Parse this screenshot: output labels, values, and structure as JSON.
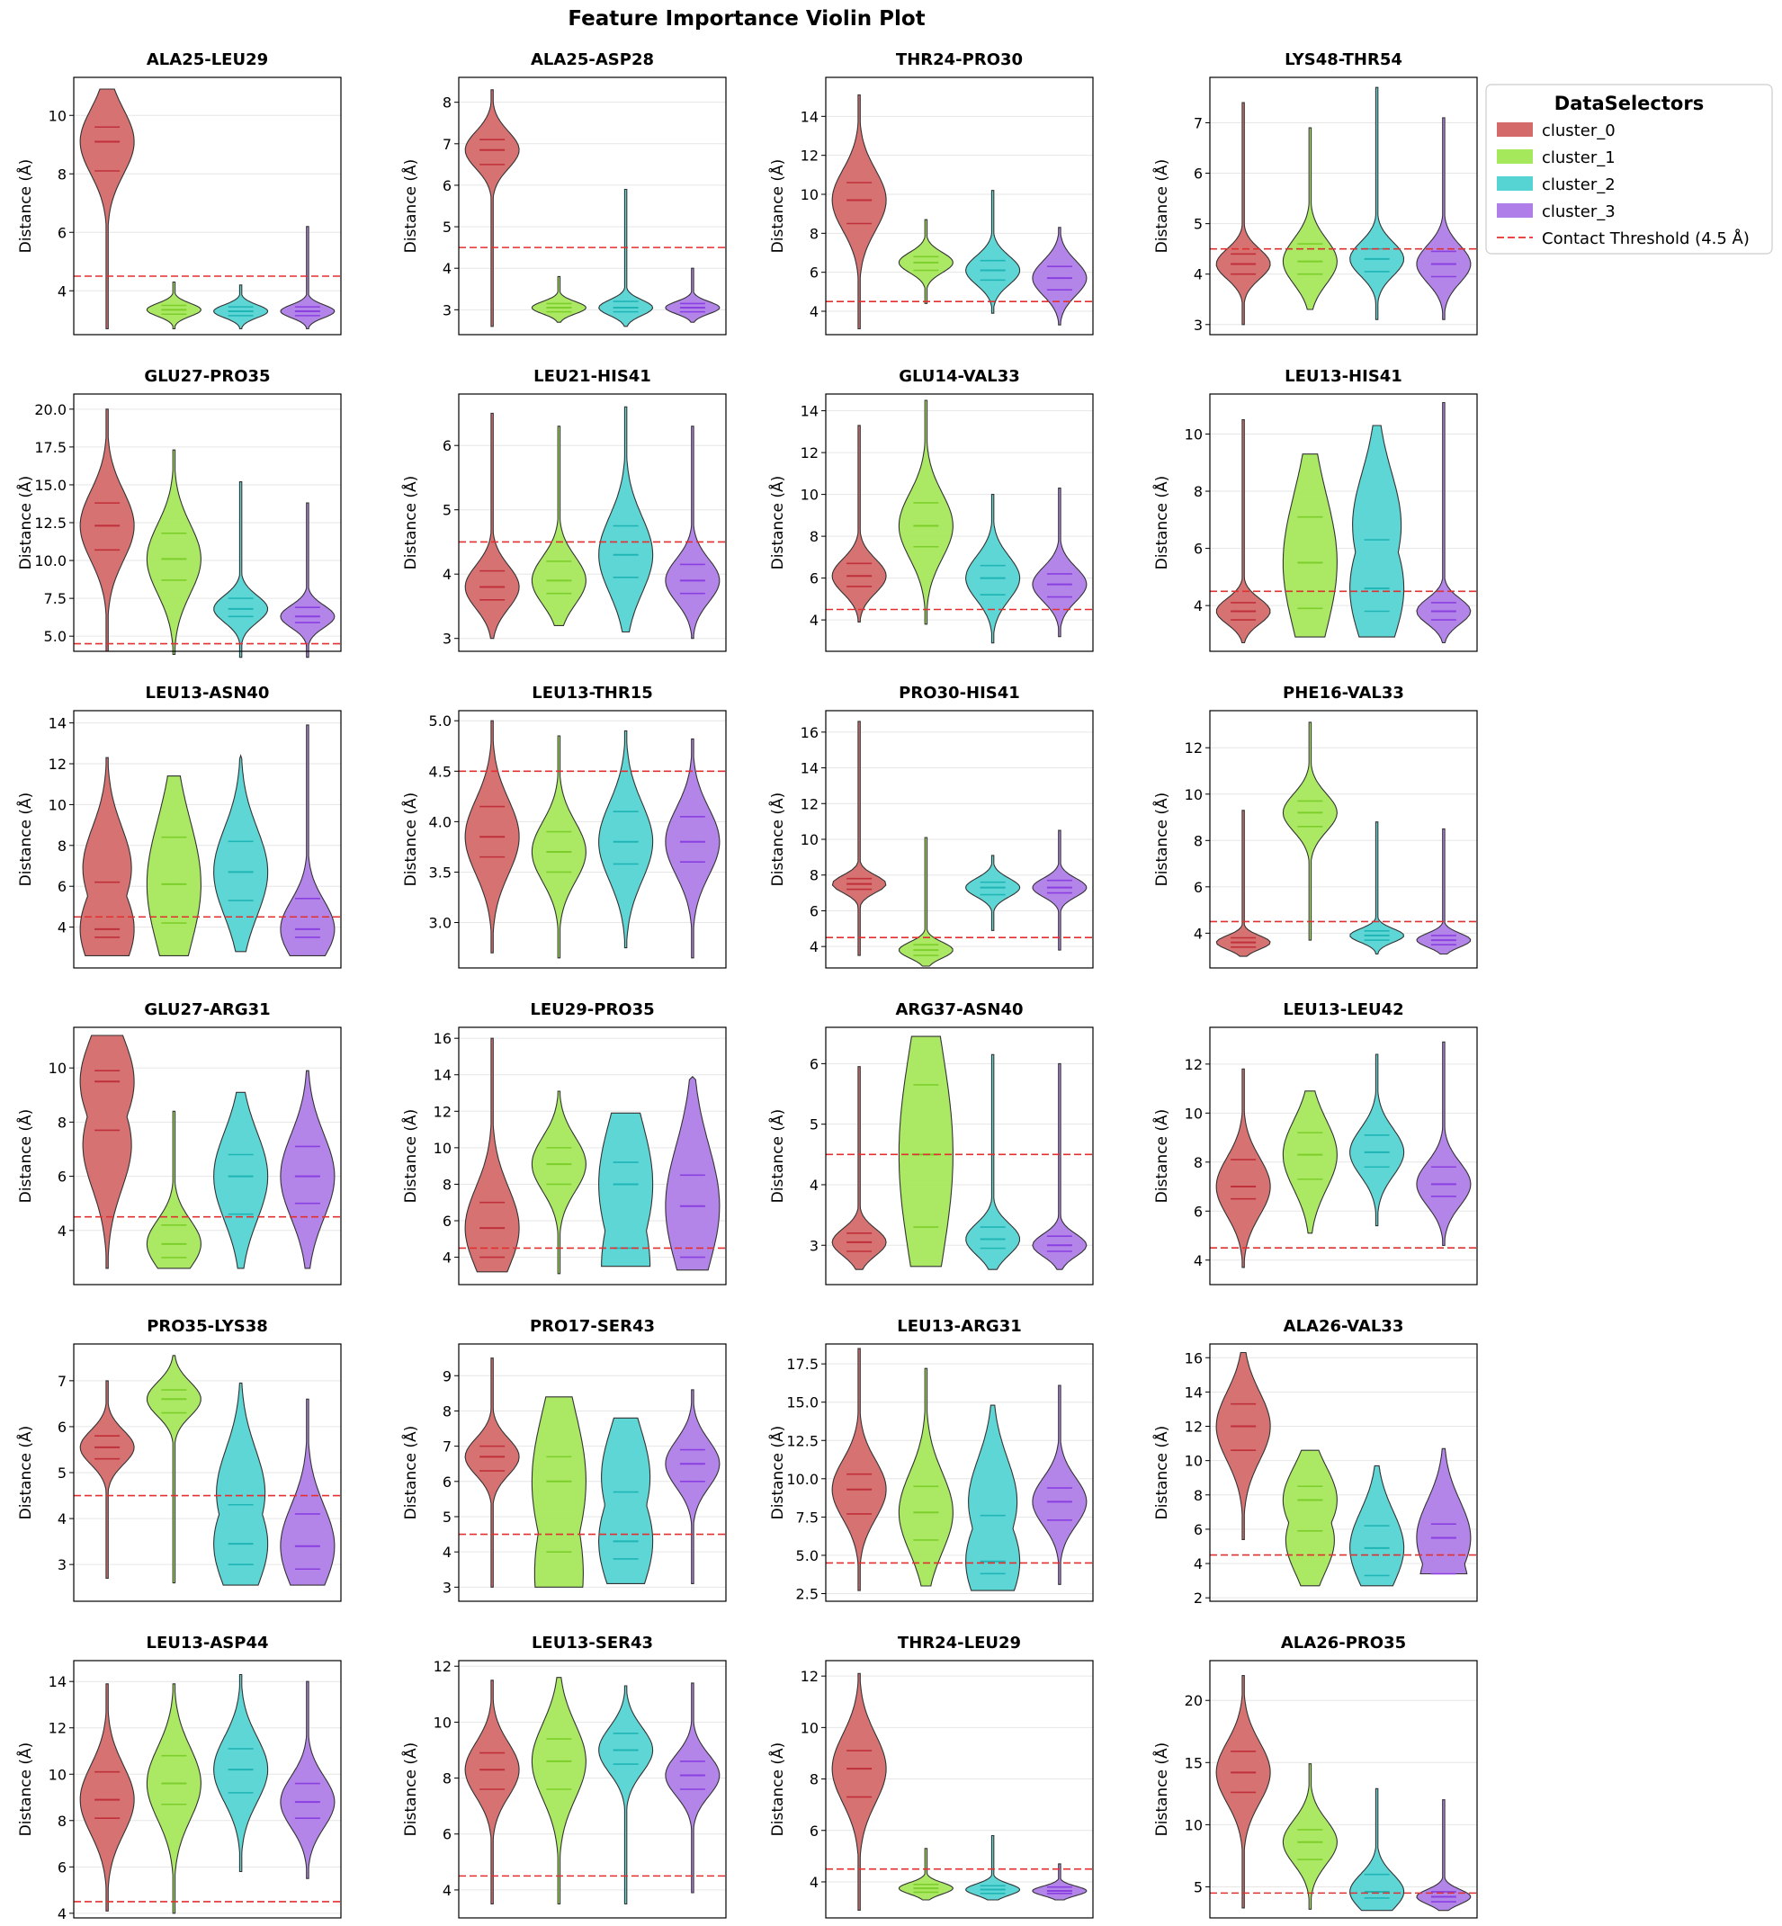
{
  "figure": {
    "title": "Feature Importance Violin Plot"
  },
  "legend": {
    "title": "DataSelectors",
    "placement": "right of grid, top",
    "threshold_label": "Contact Threshold (4.5 Å)"
  },
  "colors": {
    "cluster_0": "#d46a6a",
    "cluster_1": "#a6e85c",
    "cluster_2": "#56d4d4",
    "cluster_3": "#b07ee8",
    "cluster_0_line": "#c0303a",
    "cluster_1_line": "#7ccf2a",
    "cluster_2_line": "#1fb5b5",
    "cluster_3_line": "#8a3fe0",
    "threshold": "#e03030",
    "grid": "#e6e6e6"
  },
  "chart_data": {
    "type": "violin",
    "clusters": [
      "cluster_0",
      "cluster_1",
      "cluster_2",
      "cluster_3"
    ],
    "threshold": 4.5,
    "ylabel": "Distance (Å)",
    "grid": "y-axis only",
    "violin_stats_note": "per cluster: [min, q1, median, q3, max] in Å",
    "panels": [
      {
        "title": "ALA25-LEU29",
        "ylim": [
          2.5,
          11.3
        ],
        "yticks": [
          4,
          6,
          8,
          10
        ],
        "labels": [
          "4",
          "6",
          "8",
          "10"
        ],
        "stats": [
          [
            2.7,
            8.1,
            9.1,
            9.6,
            10.9
          ],
          [
            2.7,
            3.2,
            3.35,
            3.5,
            4.3
          ],
          [
            2.7,
            3.15,
            3.3,
            3.45,
            4.2
          ],
          [
            2.7,
            3.15,
            3.3,
            3.45,
            6.2
          ]
        ]
      },
      {
        "title": "ALA25-ASP28",
        "ylim": [
          2.4,
          8.6
        ],
        "yticks": [
          3,
          4,
          5,
          6,
          7,
          8
        ],
        "labels": [
          "3",
          "4",
          "5",
          "6",
          "7",
          "8"
        ],
        "stats": [
          [
            2.6,
            6.5,
            6.85,
            7.1,
            8.3
          ],
          [
            2.7,
            2.95,
            3.05,
            3.15,
            3.8
          ],
          [
            2.6,
            2.95,
            3.05,
            3.2,
            5.9
          ],
          [
            2.7,
            2.95,
            3.05,
            3.15,
            4.0
          ]
        ]
      },
      {
        "title": "THR24-PRO30",
        "ylim": [
          2.8,
          16.0
        ],
        "yticks": [
          4,
          6,
          8,
          10,
          12,
          14
        ],
        "labels": [
          "4",
          "6",
          "8",
          "10",
          "12",
          "14"
        ],
        "stats": [
          [
            3.1,
            8.5,
            9.7,
            10.6,
            15.1
          ],
          [
            4.4,
            6.1,
            6.5,
            6.8,
            8.7
          ],
          [
            3.9,
            5.6,
            6.1,
            6.6,
            10.2
          ],
          [
            3.3,
            5.1,
            5.7,
            6.3,
            8.3
          ]
        ]
      },
      {
        "title": "LYS48-THR54",
        "ylim": [
          2.8,
          7.9
        ],
        "yticks": [
          3,
          4,
          5,
          6,
          7
        ],
        "labels": [
          "3",
          "4",
          "5",
          "6",
          "7"
        ],
        "stats": [
          [
            3.0,
            4.0,
            4.2,
            4.4,
            7.4
          ],
          [
            3.3,
            4.0,
            4.25,
            4.6,
            6.9
          ],
          [
            3.1,
            4.05,
            4.3,
            4.5,
            7.7
          ],
          [
            3.1,
            3.95,
            4.2,
            4.45,
            7.1
          ]
        ]
      },
      {
        "title": "GLU27-PRO35",
        "ylim": [
          4.0,
          21.0
        ],
        "yticks": [
          5.0,
          7.5,
          10.0,
          12.5,
          15.0,
          17.5,
          20.0
        ],
        "labels": [
          "5.0",
          "7.5",
          "10.0",
          "12.5",
          "15.0",
          "17.5",
          "20.0"
        ],
        "stats": [
          [
            4.0,
            10.7,
            12.3,
            13.8,
            20.0
          ],
          [
            3.8,
            8.7,
            10.1,
            11.8,
            17.3
          ],
          [
            3.6,
            6.3,
            6.8,
            7.5,
            15.2
          ],
          [
            3.6,
            5.9,
            6.3,
            6.9,
            13.8
          ]
        ]
      },
      {
        "title": "LEU21-HIS41",
        "ylim": [
          2.8,
          6.8
        ],
        "yticks": [
          3,
          4,
          5,
          6
        ],
        "labels": [
          "3",
          "4",
          "5",
          "6"
        ],
        "stats": [
          [
            3.0,
            3.6,
            3.8,
            4.05,
            6.5
          ],
          [
            3.2,
            3.7,
            3.9,
            4.2,
            6.3
          ],
          [
            3.1,
            3.95,
            4.3,
            4.75,
            6.6
          ],
          [
            3.0,
            3.7,
            3.9,
            4.15,
            6.3
          ]
        ]
      },
      {
        "title": "GLU14-VAL33",
        "ylim": [
          2.5,
          14.8
        ],
        "yticks": [
          4,
          6,
          8,
          10,
          12,
          14
        ],
        "labels": [
          "4",
          "6",
          "8",
          "10",
          "12",
          "14"
        ],
        "stats": [
          [
            3.9,
            5.6,
            6.1,
            6.7,
            13.3
          ],
          [
            3.8,
            7.5,
            8.5,
            9.6,
            14.5
          ],
          [
            2.9,
            5.2,
            6.0,
            6.6,
            10.0
          ],
          [
            3.2,
            5.1,
            5.7,
            6.2,
            10.3
          ]
        ]
      },
      {
        "title": "LEU13-HIS41",
        "ylim": [
          2.4,
          11.4
        ],
        "yticks": [
          4,
          6,
          8,
          10
        ],
        "labels": [
          "4",
          "6",
          "8",
          "10"
        ],
        "stats": [
          [
            2.7,
            3.5,
            3.8,
            4.1,
            10.5
          ],
          [
            2.9,
            3.9,
            5.5,
            7.1,
            9.3
          ],
          [
            2.9,
            3.8,
            4.6,
            6.3,
            10.3
          ],
          [
            2.7,
            3.5,
            3.8,
            4.1,
            11.1
          ]
        ]
      },
      {
        "title": "LEU13-ASN40",
        "ylim": [
          2.0,
          14.6
        ],
        "yticks": [
          4,
          6,
          8,
          10,
          12,
          14
        ],
        "labels": [
          "4",
          "6",
          "8",
          "10",
          "12",
          "14"
        ],
        "stats": [
          [
            2.6,
            3.5,
            3.9,
            6.2,
            12.3
          ],
          [
            2.6,
            4.2,
            6.1,
            8.4,
            11.4
          ],
          [
            2.8,
            5.3,
            6.7,
            8.2,
            12.4
          ],
          [
            2.6,
            3.5,
            3.9,
            5.4,
            13.9
          ]
        ]
      },
      {
        "title": "LEU13-THR15",
        "ylim": [
          2.55,
          5.1
        ],
        "yticks": [
          3.0,
          3.5,
          4.0,
          4.5,
          5.0
        ],
        "labels": [
          "3.0",
          "3.5",
          "4.0",
          "4.5",
          "5.0"
        ],
        "stats": [
          [
            2.7,
            3.65,
            3.85,
            4.15,
            5.0
          ],
          [
            2.65,
            3.5,
            3.7,
            3.9,
            4.85
          ],
          [
            2.75,
            3.58,
            3.8,
            4.1,
            4.9
          ],
          [
            2.65,
            3.6,
            3.8,
            4.05,
            4.82
          ]
        ]
      },
      {
        "title": "PRO30-HIS41",
        "ylim": [
          2.8,
          17.2
        ],
        "yticks": [
          4,
          6,
          8,
          10,
          12,
          14,
          16
        ],
        "labels": [
          "4",
          "6",
          "8",
          "10",
          "12",
          "14",
          "16"
        ],
        "stats": [
          [
            3.5,
            7.2,
            7.5,
            7.8,
            16.6
          ],
          [
            2.9,
            3.5,
            3.8,
            4.1,
            10.1
          ],
          [
            4.9,
            6.9,
            7.3,
            7.6,
            9.1
          ],
          [
            3.8,
            7.0,
            7.3,
            7.7,
            10.5
          ]
        ]
      },
      {
        "title": "PHE16-VAL33",
        "ylim": [
          2.5,
          13.6
        ],
        "yticks": [
          4,
          6,
          8,
          10,
          12
        ],
        "labels": [
          "4",
          "6",
          "8",
          "10",
          "12"
        ],
        "stats": [
          [
            3.0,
            3.4,
            3.6,
            3.8,
            9.3
          ],
          [
            3.7,
            8.6,
            9.2,
            9.7,
            13.1
          ],
          [
            3.1,
            3.7,
            3.9,
            4.1,
            8.8
          ],
          [
            3.1,
            3.5,
            3.7,
            3.9,
            8.5
          ]
        ]
      },
      {
        "title": "GLU27-ARG31",
        "ylim": [
          2.0,
          11.5
        ],
        "yticks": [
          4,
          6,
          8,
          10
        ],
        "labels": [
          "4",
          "6",
          "8",
          "10"
        ],
        "stats": [
          [
            2.6,
            7.7,
            9.5,
            9.9,
            11.2
          ],
          [
            2.6,
            3.0,
            3.5,
            4.2,
            8.4
          ],
          [
            2.6,
            4.6,
            6.0,
            6.8,
            9.1
          ],
          [
            2.6,
            5.0,
            6.0,
            7.1,
            9.9
          ]
        ]
      },
      {
        "title": "LEU29-PRO35",
        "ylim": [
          2.5,
          16.6
        ],
        "yticks": [
          4,
          6,
          8,
          10,
          12,
          14,
          16
        ],
        "labels": [
          "4",
          "6",
          "8",
          "10",
          "12",
          "14",
          "16"
        ],
        "stats": [
          [
            3.2,
            4.0,
            5.6,
            7.0,
            16.0
          ],
          [
            3.1,
            8.0,
            9.1,
            10.0,
            13.1
          ],
          [
            3.5,
            4.5,
            8.0,
            9.2,
            11.9
          ],
          [
            3.3,
            4.0,
            6.8,
            8.5,
            13.9
          ]
        ]
      },
      {
        "title": "ARG37-ASN40",
        "ylim": [
          2.35,
          6.6
        ],
        "yticks": [
          3,
          4,
          5,
          6
        ],
        "labels": [
          "3",
          "4",
          "5",
          "6"
        ],
        "stats": [
          [
            2.6,
            2.9,
            3.05,
            3.2,
            5.95
          ],
          [
            2.65,
            3.3,
            4.5,
            5.65,
            6.45
          ],
          [
            2.6,
            2.95,
            3.1,
            3.3,
            6.15
          ],
          [
            2.6,
            2.9,
            3.0,
            3.15,
            6.0
          ]
        ]
      },
      {
        "title": "LEU13-LEU42",
        "ylim": [
          3.0,
          13.5
        ],
        "yticks": [
          4,
          6,
          8,
          10,
          12
        ],
        "labels": [
          "4",
          "6",
          "8",
          "10",
          "12"
        ],
        "stats": [
          [
            3.7,
            6.5,
            7.0,
            8.1,
            11.8
          ],
          [
            5.1,
            7.3,
            8.3,
            9.2,
            10.9
          ],
          [
            5.4,
            7.8,
            8.4,
            9.1,
            12.4
          ],
          [
            4.6,
            6.6,
            7.1,
            7.8,
            12.9
          ]
        ]
      },
      {
        "title": "PRO35-LYS38",
        "ylim": [
          2.2,
          7.8
        ],
        "yticks": [
          3,
          4,
          5,
          6,
          7
        ],
        "labels": [
          "3",
          "4",
          "5",
          "6",
          "7"
        ],
        "stats": [
          [
            2.7,
            5.3,
            5.55,
            5.8,
            7.0
          ],
          [
            2.6,
            6.3,
            6.6,
            6.8,
            7.55
          ],
          [
            2.55,
            3.0,
            3.45,
            4.3,
            6.95
          ],
          [
            2.55,
            2.9,
            3.4,
            4.1,
            6.6
          ]
        ]
      },
      {
        "title": "PRO17-SER43",
        "ylim": [
          2.6,
          9.9
        ],
        "yticks": [
          3,
          4,
          5,
          6,
          7,
          8,
          9
        ],
        "labels": [
          "3",
          "4",
          "5",
          "6",
          "7",
          "8",
          "9"
        ],
        "stats": [
          [
            3.0,
            6.3,
            6.7,
            7.0,
            9.5
          ],
          [
            3.0,
            4.0,
            6.0,
            6.7,
            8.4
          ],
          [
            3.1,
            3.8,
            4.3,
            5.7,
            7.8
          ],
          [
            3.1,
            6.0,
            6.5,
            6.9,
            8.6
          ]
        ]
      },
      {
        "title": "LEU13-ARG31",
        "ylim": [
          2.0,
          18.8
        ],
        "yticks": [
          2.5,
          5.0,
          7.5,
          10.0,
          12.5,
          15.0,
          17.5
        ],
        "labels": [
          "2.5",
          "5.0",
          "7.5",
          "10.0",
          "12.5",
          "15.0",
          "17.5"
        ],
        "stats": [
          [
            2.7,
            7.7,
            9.3,
            10.3,
            18.5
          ],
          [
            3.0,
            6.0,
            7.8,
            9.5,
            17.2
          ],
          [
            2.7,
            3.8,
            4.6,
            7.6,
            14.8
          ],
          [
            3.1,
            7.3,
            8.5,
            9.4,
            16.1
          ]
        ]
      },
      {
        "title": "ALA26-VAL33",
        "ylim": [
          1.8,
          16.8
        ],
        "yticks": [
          2,
          4,
          6,
          8,
          10,
          12,
          14,
          16
        ],
        "labels": [
          "2",
          "4",
          "6",
          "8",
          "10",
          "12",
          "14",
          "16"
        ],
        "stats": [
          [
            5.4,
            10.6,
            12.0,
            13.3,
            16.3
          ],
          [
            2.7,
            5.9,
            7.7,
            8.5,
            10.6
          ],
          [
            2.7,
            3.3,
            4.9,
            6.2,
            9.7
          ],
          [
            3.4,
            3.4,
            5.5,
            6.3,
            10.7
          ]
        ]
      },
      {
        "title": "LEU13-ASP44",
        "ylim": [
          3.8,
          14.9
        ],
        "yticks": [
          4,
          6,
          8,
          10,
          12,
          14
        ],
        "labels": [
          "4",
          "6",
          "8",
          "10",
          "12",
          "14"
        ],
        "stats": [
          [
            4.1,
            8.1,
            8.9,
            10.1,
            13.9
          ],
          [
            4.0,
            8.7,
            9.6,
            10.8,
            13.9
          ],
          [
            5.8,
            9.2,
            10.2,
            11.1,
            14.3
          ],
          [
            5.5,
            8.1,
            8.8,
            9.6,
            14.0
          ]
        ]
      },
      {
        "title": "LEU13-SER43",
        "ylim": [
          3.0,
          12.2
        ],
        "yticks": [
          4,
          6,
          8,
          10,
          12
        ],
        "labels": [
          "4",
          "6",
          "8",
          "10",
          "12"
        ],
        "stats": [
          [
            3.5,
            7.6,
            8.3,
            8.9,
            11.5
          ],
          [
            3.5,
            7.6,
            8.6,
            9.4,
            11.6
          ],
          [
            3.5,
            8.5,
            9.0,
            9.6,
            11.3
          ],
          [
            3.9,
            7.6,
            8.1,
            8.6,
            11.4
          ]
        ]
      },
      {
        "title": "THR24-LEU29",
        "ylim": [
          2.6,
          12.6
        ],
        "yticks": [
          4,
          6,
          8,
          10,
          12
        ],
        "labels": [
          "4",
          "6",
          "8",
          "10",
          "12"
        ],
        "stats": [
          [
            2.9,
            7.3,
            8.4,
            9.1,
            12.1
          ],
          [
            3.3,
            3.6,
            3.75,
            3.9,
            5.3
          ],
          [
            3.3,
            3.55,
            3.7,
            3.85,
            5.8
          ],
          [
            3.3,
            3.55,
            3.65,
            3.8,
            4.7
          ]
        ]
      },
      {
        "title": "ALA26-PRO35",
        "ylim": [
          2.5,
          23.2
        ],
        "yticks": [
          5,
          10,
          15,
          20
        ],
        "labels": [
          "5",
          "10",
          "15",
          "20"
        ],
        "stats": [
          [
            3.3,
            12.6,
            14.2,
            15.9,
            22.0
          ],
          [
            3.2,
            7.2,
            8.6,
            9.6,
            14.9
          ],
          [
            3.1,
            4.1,
            4.6,
            6.0,
            12.9
          ],
          [
            3.1,
            3.8,
            4.2,
            4.6,
            12.0
          ]
        ]
      }
    ]
  }
}
